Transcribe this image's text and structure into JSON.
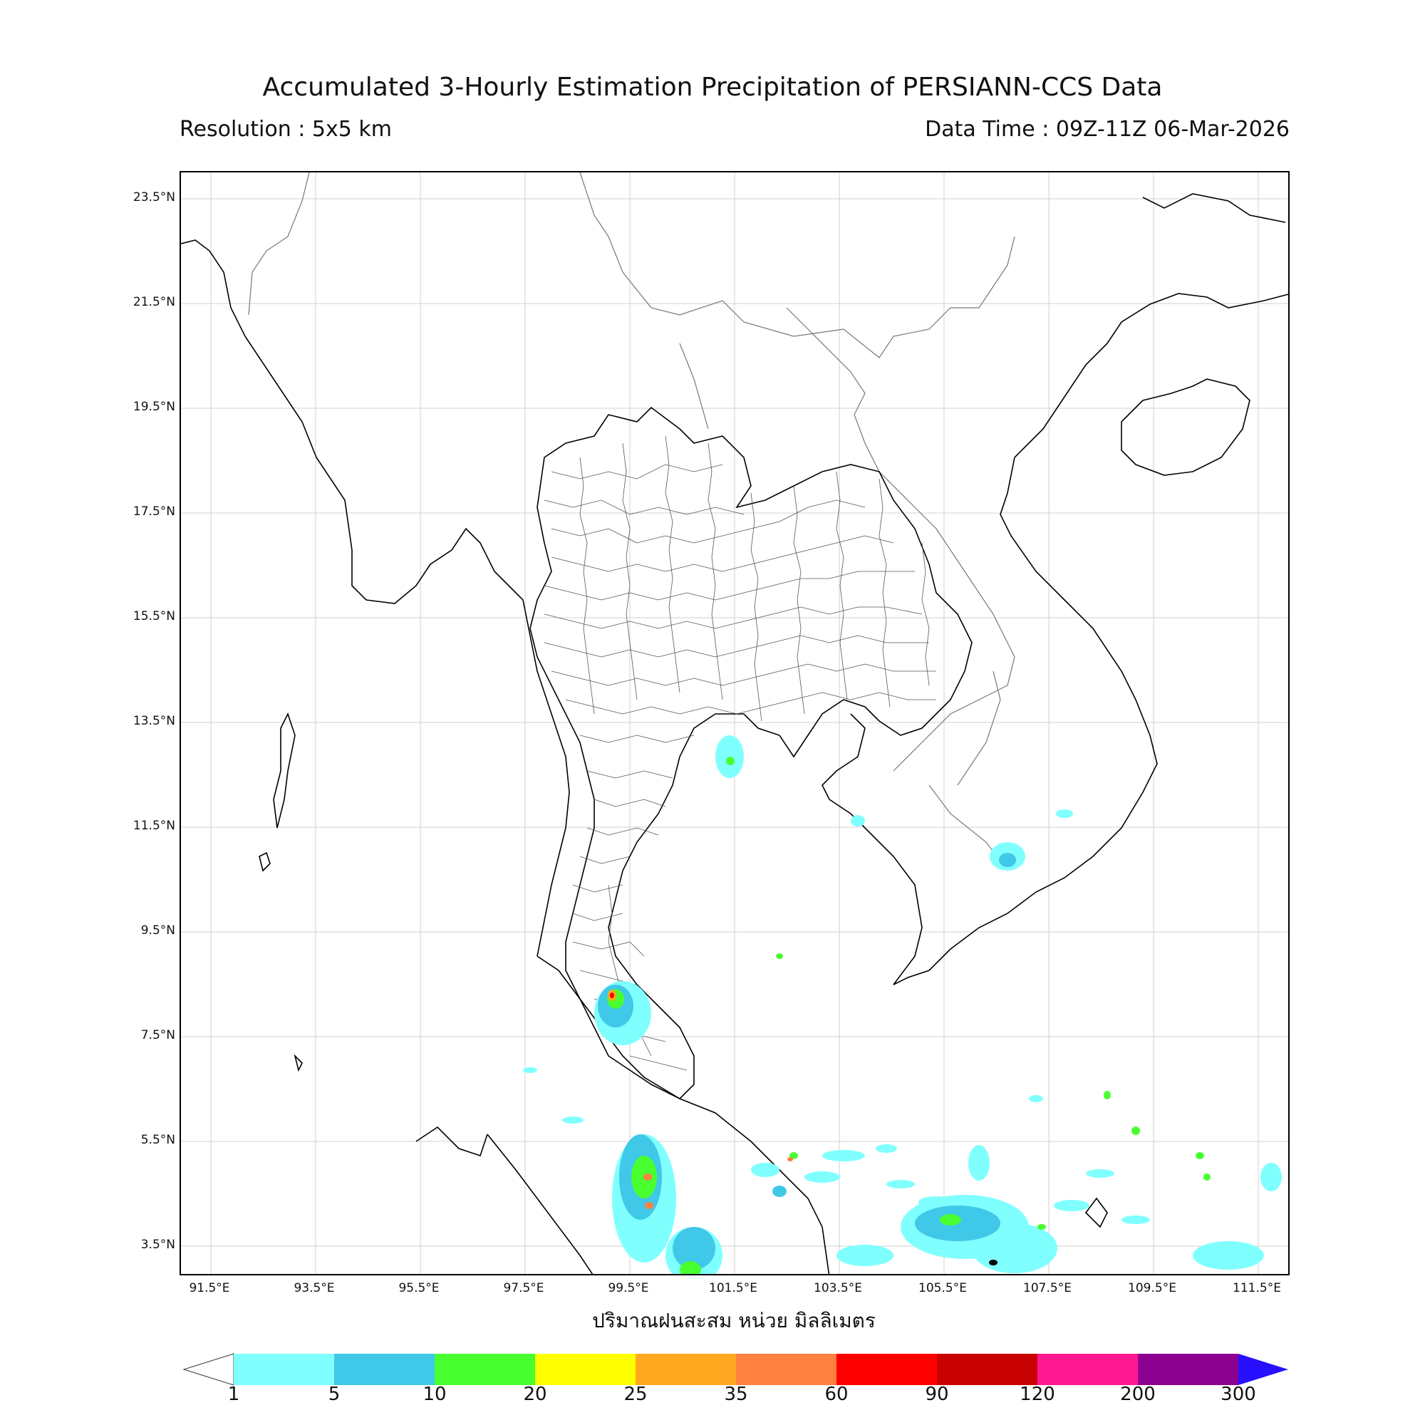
{
  "header": {
    "title": "Accumulated 3-Hourly Estimation Precipitation of PERSIANN-CCS Data",
    "resolution": "Resolution : 5x5 km",
    "data_time": "Data Time : 09Z-11Z 06-Mar-2026"
  },
  "axes": {
    "lat_labels": [
      "23.5°N",
      "21.5°N",
      "19.5°N",
      "17.5°N",
      "15.5°N",
      "13.5°N",
      "11.5°N",
      "9.5°N",
      "7.5°N",
      "5.5°N",
      "3.5°N"
    ],
    "lon_labels": [
      "91.5°E",
      "93.5°E",
      "95.5°E",
      "97.5°E",
      "99.5°E",
      "101.5°E",
      "103.5°E",
      "105.5°E",
      "107.5°E",
      "109.5°E",
      "111.5°E"
    ],
    "x_title": "ปริมาณฝนสะสม หน่วย มิลลิเมตร"
  },
  "colorbar": {
    "labels": [
      "1",
      "5",
      "10",
      "20",
      "25",
      "35",
      "60",
      "90",
      "120",
      "200",
      "300"
    ],
    "colors": [
      "#80ffff",
      "#40c8e8",
      "#48ff30",
      "#ffff00",
      "#ffa820",
      "#ff8040",
      "#ff0000",
      "#c80000",
      "#ff1890",
      "#8c0090"
    ],
    "under_color": "#ffffff",
    "over_color": "#2810ff"
  }
}
